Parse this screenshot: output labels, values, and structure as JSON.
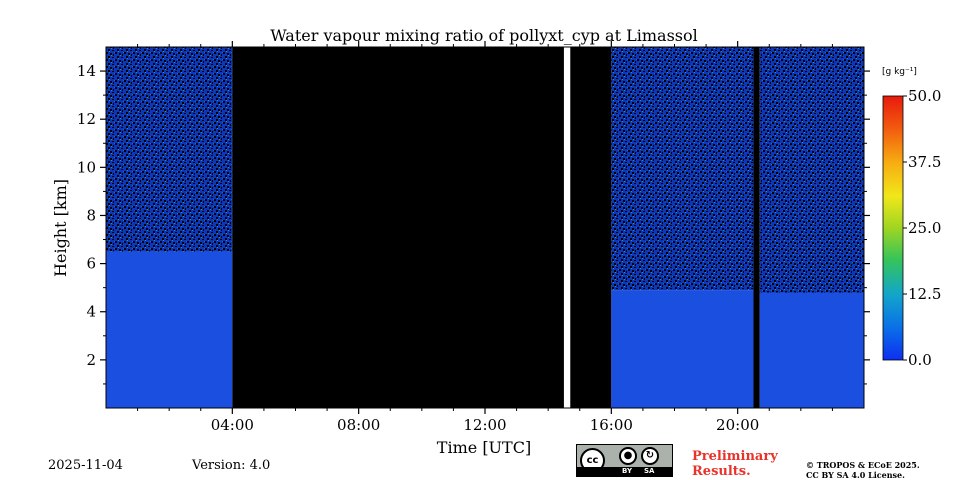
{
  "chart_data": {
    "type": "heatmap",
    "title": "Water vapour mixing ratio of pollyxt_cyp at Limassol",
    "xlabel": "Time [UTC]",
    "ylabel": "Height [km]",
    "xlim": [
      0,
      24
    ],
    "ylim": [
      0,
      15
    ],
    "x_ticks": [
      {
        "value": 4,
        "label": "04:00"
      },
      {
        "value": 8,
        "label": "08:00"
      },
      {
        "value": 12,
        "label": "12:00"
      },
      {
        "value": 16,
        "label": "16:00"
      },
      {
        "value": 20,
        "label": "20:00"
      }
    ],
    "y_ticks": [
      {
        "value": 2,
        "label": "2"
      },
      {
        "value": 4,
        "label": "4"
      },
      {
        "value": 6,
        "label": "6"
      },
      {
        "value": 8,
        "label": "8"
      },
      {
        "value": 10,
        "label": "10"
      },
      {
        "value": 12,
        "label": "12"
      },
      {
        "value": 14,
        "label": "14"
      }
    ],
    "colorbar": {
      "unit_label": "[g kg⁻¹]",
      "range": [
        0,
        50
      ],
      "ticks": [
        "0.0",
        "12.5",
        "25.0",
        "37.5",
        "50.0"
      ],
      "colormap": "jet"
    },
    "segments": [
      {
        "start": 0,
        "end": 4,
        "state": "measured",
        "boundary_layer_top_km": 6.5
      },
      {
        "start": 4,
        "end": 14.5,
        "state": "no_data"
      },
      {
        "start": 14.5,
        "end": 14.7,
        "state": "gap"
      },
      {
        "start": 14.7,
        "end": 16,
        "state": "no_data"
      },
      {
        "start": 16,
        "end": 20.5,
        "state": "measured",
        "boundary_layer_top_km": 4.9
      },
      {
        "start": 20.5,
        "end": 20.7,
        "state": "no_data"
      },
      {
        "start": 20.7,
        "end": 24,
        "state": "measured",
        "boundary_layer_top_km": 4.8
      }
    ],
    "colors": {
      "no_data": "#000000",
      "boundary_layer": "#1a4fe0",
      "free_troposphere": "#0f3fc8",
      "axes": "#000000"
    }
  },
  "footer": {
    "date": "2025-11-04",
    "version": "Version: 4.0",
    "license_badge": {
      "cc": "cc",
      "by": "BY",
      "sa": "SA"
    },
    "preliminary_line1": "Preliminary",
    "preliminary_line2": "Results.",
    "copyright_line1": "© TROPOS & ECoE 2025.",
    "copyright_line2": "CC BY SA 4.0 License."
  }
}
